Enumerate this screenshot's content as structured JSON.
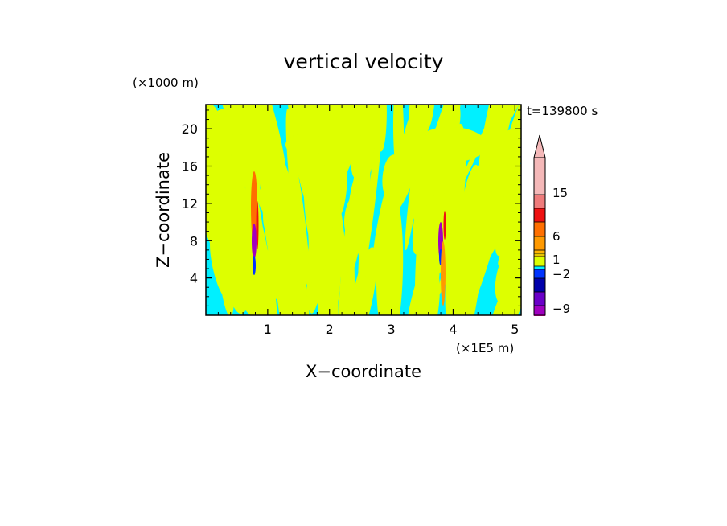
{
  "chart_data": {
    "type": "heatmap",
    "title": "vertical velocity",
    "xlabel": "X−coordinate",
    "ylabel": "Z−coordinate",
    "x_unit": "(×1E5 m)",
    "y_unit": "(×1000 m)",
    "time_label": "t=139800 s",
    "xlim": [
      0,
      5.1
    ],
    "ylim": [
      0,
      22.6
    ],
    "xticks": [
      "1",
      "2",
      "3",
      "4",
      "5"
    ],
    "yticks": [
      "4",
      "8",
      "12",
      "16",
      "20"
    ],
    "colorbar": {
      "tick_labels": [
        "15",
        "6",
        "1",
        "−2",
        "−9"
      ],
      "bins": [
        {
          "color": "#f4b8b8"
        },
        {
          "color": "#ee7b7b"
        },
        {
          "color": "#ee1111"
        },
        {
          "color": "#ff6f00"
        },
        {
          "color": "#ff9900"
        },
        {
          "color": "#ffb300"
        },
        {
          "color": "#e6c400"
        },
        {
          "color": "#ddff00"
        },
        {
          "color": "#00f0ff"
        },
        {
          "color": "#0033ff"
        },
        {
          "color": "#0000aa"
        },
        {
          "color": "#6a00c8"
        },
        {
          "color": "#a000c0"
        },
        {
          "color": "#e000a0"
        }
      ]
    },
    "legend_position": "right",
    "grid": false
  }
}
